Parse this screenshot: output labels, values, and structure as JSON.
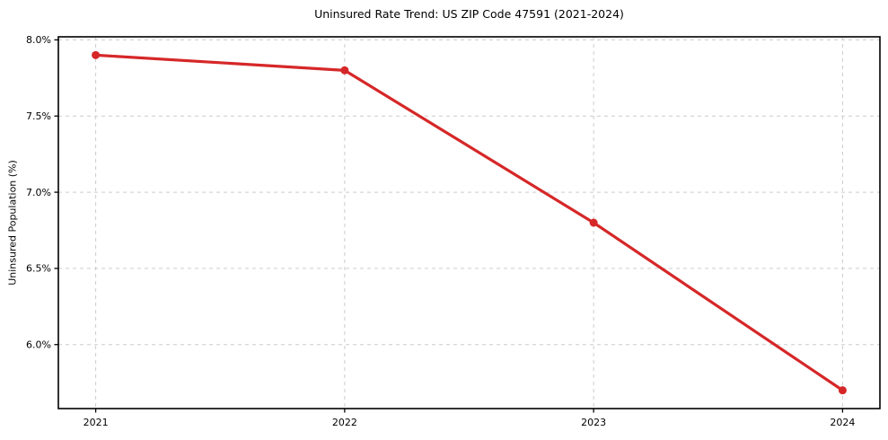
{
  "figure": {
    "background": "#ffffff"
  },
  "chart_data": {
    "type": "line",
    "title": "Uninsured Rate Trend: US ZIP Code 47591 (2021-2024)",
    "xlabel": "",
    "ylabel": "Uninsured Population (%)",
    "x": [
      2021,
      2022,
      2023,
      2024
    ],
    "series": [
      {
        "name": "Uninsured Population (%)",
        "values": [
          7.9,
          7.8,
          6.8,
          5.7
        ]
      }
    ],
    "xlim": [
      2020.85,
      2024.15
    ],
    "ylim": [
      5.58,
      8.02
    ],
    "xticks": {
      "values": [
        2021,
        2022,
        2023,
        2024
      ],
      "labels": [
        "2021",
        "2022",
        "2023",
        "2024"
      ]
    },
    "yticks": {
      "values": [
        6.0,
        6.5,
        7.0,
        7.5,
        8.0
      ],
      "labels": [
        "6.0%",
        "6.5%",
        "7.0%",
        "7.5%",
        "8.0%"
      ]
    },
    "grid": true,
    "grid_style": "dashed",
    "legend": "none",
    "marker": "circle",
    "line_color": "#d62728",
    "grid_color": "#cccccc",
    "spine_color": "#000000",
    "text_color": "#000000"
  }
}
